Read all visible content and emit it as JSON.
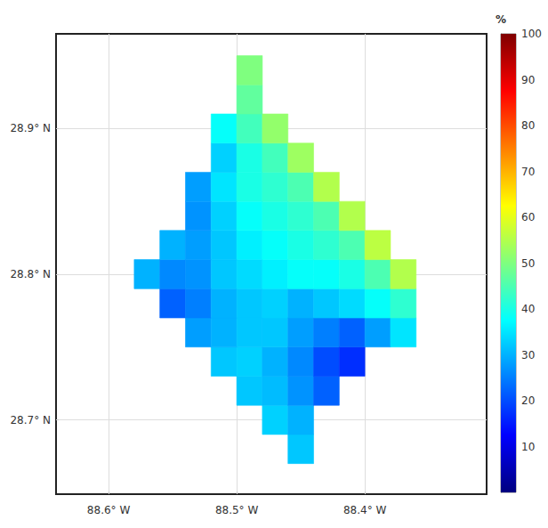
{
  "chart_data": {
    "type": "heatmap",
    "x": [
      -88.57,
      -88.55,
      -88.53,
      -88.51,
      -88.49,
      -88.47,
      -88.45,
      -88.43,
      -88.41,
      -88.39,
      -88.37
    ],
    "y": [
      28.68,
      28.7,
      28.72,
      28.74,
      28.76,
      28.78,
      28.8,
      28.82,
      28.84,
      28.86,
      28.88,
      28.9,
      28.92,
      28.94
    ],
    "cells": [
      [
        null,
        null,
        null,
        null,
        null,
        null,
        32,
        null,
        null,
        null,
        null
      ],
      [
        null,
        null,
        null,
        null,
        null,
        33,
        30,
        null,
        null,
        null,
        null
      ],
      [
        null,
        null,
        null,
        null,
        32,
        31,
        27,
        22,
        null,
        null,
        null
      ],
      [
        null,
        null,
        null,
        32,
        33,
        30,
        26,
        20,
        17,
        null,
        null
      ],
      [
        null,
        null,
        28,
        30,
        32,
        32,
        28,
        25,
        22,
        28,
        35
      ],
      [
        null,
        22,
        25,
        30,
        32,
        33,
        30,
        32,
        34,
        38,
        42
      ],
      [
        30,
        26,
        27,
        32,
        34,
        36,
        38,
        38,
        40,
        45,
        55
      ],
      [
        null,
        30,
        28,
        32,
        36,
        38,
        40,
        42,
        45,
        56,
        null
      ],
      [
        null,
        null,
        27,
        33,
        38,
        40,
        42,
        45,
        55,
        null,
        null
      ],
      [
        null,
        null,
        28,
        35,
        40,
        42,
        45,
        55,
        null,
        null,
        null
      ],
      [
        null,
        null,
        null,
        33,
        40,
        44,
        53,
        null,
        null,
        null,
        null
      ],
      [
        null,
        null,
        null,
        38,
        44,
        52,
        null,
        null,
        null,
        null,
        null
      ],
      [
        null,
        null,
        null,
        null,
        47,
        null,
        null,
        null,
        null,
        null,
        null
      ],
      [
        null,
        null,
        null,
        null,
        50,
        null,
        null,
        null,
        null,
        null,
        null
      ]
    ],
    "xlim": [
      -88.641,
      -88.305
    ],
    "ylim": [
      28.649,
      28.965
    ],
    "xticks": [
      {
        "value": -88.6,
        "label": "88.6° W"
      },
      {
        "value": -88.5,
        "label": "88.5° W"
      },
      {
        "value": -88.4,
        "label": "88.4° W"
      }
    ],
    "yticks": [
      {
        "value": 28.7,
        "label": "28.7° N"
      },
      {
        "value": 28.8,
        "label": "28.8° N"
      },
      {
        "value": 28.9,
        "label": "28.9° N"
      }
    ],
    "grid": true,
    "colorbar_label": "%",
    "colorbar_range": [
      0,
      100
    ],
    "colorbar_ticks": [
      10,
      20,
      30,
      40,
      50,
      60,
      70,
      80,
      90,
      100
    ]
  }
}
